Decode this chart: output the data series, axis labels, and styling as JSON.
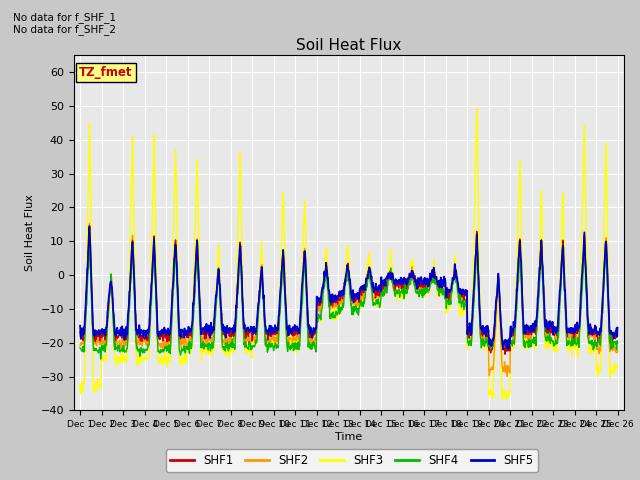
{
  "title": "Soil Heat Flux",
  "ylabel": "Soil Heat Flux",
  "xlabel": "Time",
  "ylim": [
    -40,
    65
  ],
  "yticks": [
    -40,
    -30,
    -20,
    -10,
    0,
    10,
    20,
    30,
    40,
    50,
    60
  ],
  "note1": "No data for f_SHF_1",
  "note2": "No data for f_SHF_2",
  "legend_label": "TZ_fmet",
  "colors": {
    "SHF1": "#cc0000",
    "SHF2": "#ff9900",
    "SHF3": "#ffff00",
    "SHF4": "#00bb00",
    "SHF5": "#0000cc"
  },
  "fig_facecolor": "#c8c8c8",
  "ax_facecolor": "#e8e8e8",
  "grid_color": "#ffffff"
}
